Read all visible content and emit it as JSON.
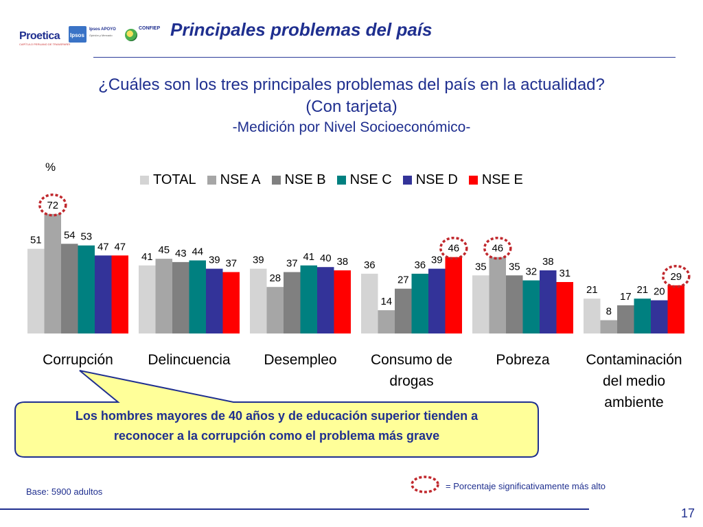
{
  "header": {
    "logos": [
      {
        "name": "Proetica",
        "tagline": "CAPÍTULO PERUANO DE TRANSPARENCY INTERNATIONAL"
      },
      {
        "name": "Ipsos"
      },
      {
        "name": "Ipsos APOYO",
        "tagline": "Opinión y Mercado"
      },
      {
        "name": "CONFIEP"
      }
    ],
    "title": "Principales problemas del país"
  },
  "question": {
    "line1": "¿Cuáles son los tres principales problemas del país en la actualidad?",
    "line2": "(Con tarjeta)",
    "subtitle": "-Medición por Nivel Socioeconómico-"
  },
  "chart_data": {
    "type": "bar",
    "unit_label": "%",
    "categories": [
      [
        "Corrupción"
      ],
      [
        "Delincuencia"
      ],
      [
        "Desempleo"
      ],
      [
        "Consumo de",
        "drogas"
      ],
      [
        "Pobreza"
      ],
      [
        "Contaminación",
        "del medio",
        "ambiente"
      ]
    ],
    "series": [
      {
        "name": "TOTAL",
        "color": "#d4d4d4",
        "values": [
          51,
          41,
          39,
          36,
          35,
          21
        ]
      },
      {
        "name": "NSE A",
        "color": "#a6a6a6",
        "values": [
          72,
          45,
          28,
          14,
          46,
          8
        ]
      },
      {
        "name": "NSE B",
        "color": "#808080",
        "values": [
          54,
          43,
          37,
          27,
          35,
          17
        ]
      },
      {
        "name": "NSE C",
        "color": "#008080",
        "values": [
          53,
          44,
          41,
          36,
          32,
          21
        ]
      },
      {
        "name": "NSE D",
        "color": "#333399",
        "values": [
          47,
          39,
          40,
          39,
          38,
          20
        ]
      },
      {
        "name": "NSE E",
        "color": "#ff0000",
        "values": [
          47,
          37,
          38,
          46,
          31,
          29
        ]
      }
    ],
    "highlighted": [
      {
        "category": 0,
        "series": 1
      },
      {
        "category": 3,
        "series": 5
      },
      {
        "category": 4,
        "series": 1
      },
      {
        "category": 5,
        "series": 5
      }
    ],
    "ylim": [
      0,
      75
    ],
    "legend_position": "top"
  },
  "callout": {
    "text_line1": "Los hombres mayores de 40 años y de educación superior tienden a",
    "text_line2": "reconocer a la corrupción como el problema más grave"
  },
  "footer": {
    "base": "Base: 5900 adultos",
    "significance_note": "= Porcentaje significativamente más alto",
    "page_number": "17"
  },
  "colors": {
    "title_blue": "#1f2f8f",
    "callout_fill": "#ffff99",
    "highlight_ring": "#c0282d"
  }
}
